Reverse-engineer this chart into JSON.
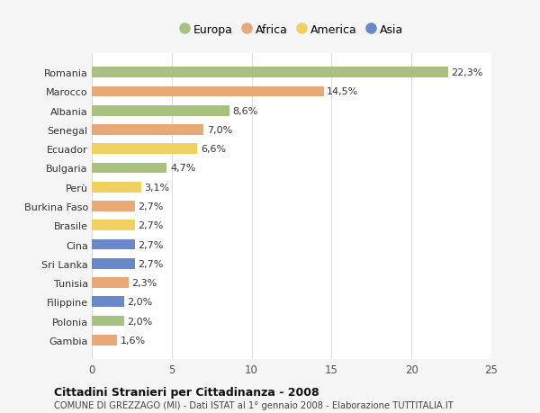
{
  "countries": [
    "Romania",
    "Marocco",
    "Albania",
    "Senegal",
    "Ecuador",
    "Bulgaria",
    "Perù",
    "Burkina Faso",
    "Brasile",
    "Cina",
    "Sri Lanka",
    "Tunisia",
    "Filippine",
    "Polonia",
    "Gambia"
  ],
  "values": [
    22.3,
    14.5,
    8.6,
    7.0,
    6.6,
    4.7,
    3.1,
    2.7,
    2.7,
    2.7,
    2.7,
    2.3,
    2.0,
    2.0,
    1.6
  ],
  "labels": [
    "22,3%",
    "14,5%",
    "8,6%",
    "7,0%",
    "6,6%",
    "4,7%",
    "3,1%",
    "2,7%",
    "2,7%",
    "2,7%",
    "2,7%",
    "2,3%",
    "2,0%",
    "2,0%",
    "1,6%"
  ],
  "continents": [
    "Europa",
    "Africa",
    "Europa",
    "Africa",
    "America",
    "Europa",
    "America",
    "Africa",
    "America",
    "Asia",
    "Asia",
    "Africa",
    "Asia",
    "Europa",
    "Africa"
  ],
  "colors": {
    "Europa": "#a8c080",
    "Africa": "#e8a878",
    "America": "#f0d060",
    "Asia": "#6888c8"
  },
  "legend_order": [
    "Europa",
    "Africa",
    "America",
    "Asia"
  ],
  "title": "Cittadini Stranieri per Cittadinanza - 2008",
  "subtitle": "COMUNE DI GREZZAGO (MI) - Dati ISTAT al 1° gennaio 2008 - Elaborazione TUTTITALIA.IT",
  "xlim": [
    0,
    25
  ],
  "xticks": [
    0,
    5,
    10,
    15,
    20,
    25
  ],
  "background_color": "#f5f5f5",
  "plot_bg_color": "#ffffff",
  "grid_color": "#dddddd",
  "label_fontsize": 8.0,
  "ytick_fontsize": 8.0,
  "xtick_fontsize": 8.5,
  "bar_height": 0.55
}
